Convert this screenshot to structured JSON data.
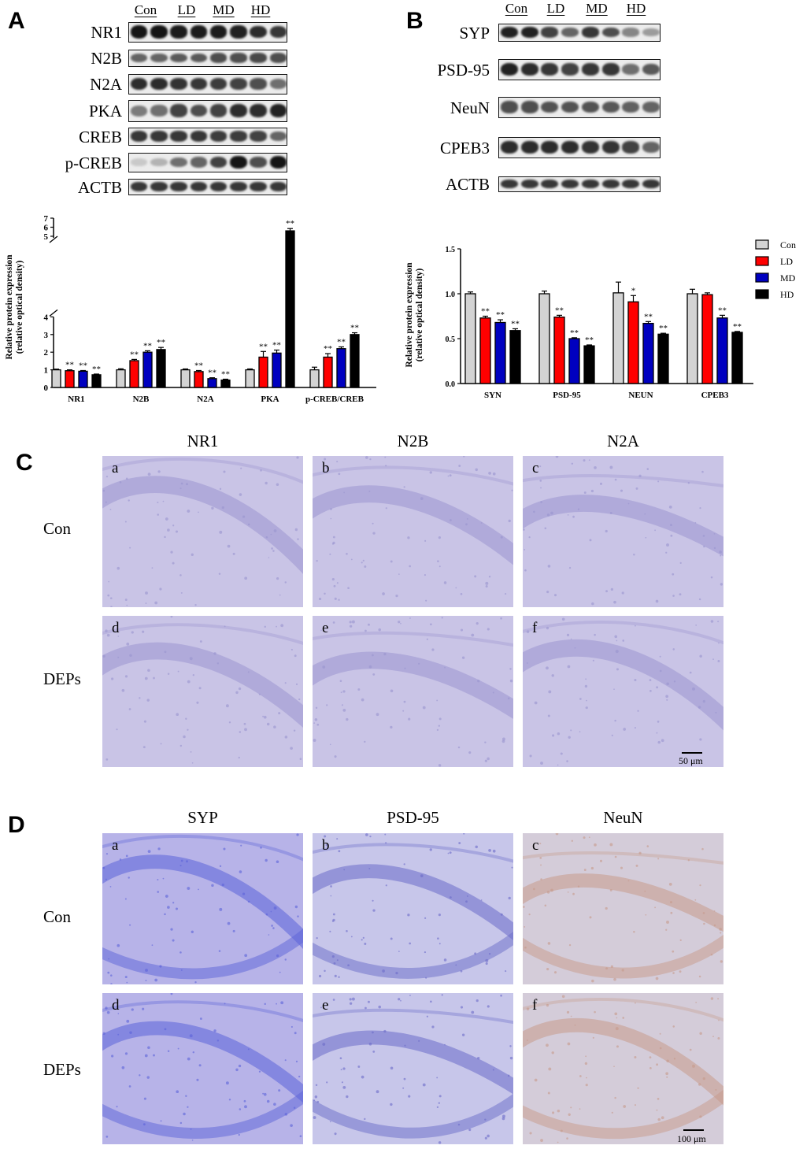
{
  "panels": {
    "a": {
      "letter": "A"
    },
    "b": {
      "letter": "B"
    },
    "c": {
      "letter": "C"
    },
    "d": {
      "letter": "D"
    }
  },
  "groups": [
    "Con",
    "LD",
    "MD",
    "HD"
  ],
  "blots_a": {
    "rows": [
      "NR1",
      "N2B",
      "N2A",
      "PKA",
      "CREB",
      "p-CREB",
      "ACTB"
    ],
    "intensity": [
      [
        0.95,
        0.95,
        0.92,
        0.92,
        0.92,
        0.9,
        0.85,
        0.8
      ],
      [
        0.6,
        0.6,
        0.65,
        0.65,
        0.7,
        0.7,
        0.72,
        0.7
      ],
      [
        0.85,
        0.85,
        0.82,
        0.8,
        0.78,
        0.75,
        0.7,
        0.55
      ],
      [
        0.5,
        0.55,
        0.75,
        0.7,
        0.75,
        0.85,
        0.85,
        0.9
      ],
      [
        0.8,
        0.8,
        0.8,
        0.8,
        0.78,
        0.78,
        0.75,
        0.6
      ],
      [
        0.15,
        0.25,
        0.55,
        0.6,
        0.75,
        0.95,
        0.7,
        0.95
      ],
      [
        0.8,
        0.8,
        0.8,
        0.8,
        0.8,
        0.8,
        0.8,
        0.8
      ]
    ]
  },
  "blots_b": {
    "rows": [
      "SYP",
      "PSD-95",
      "NeuN",
      "CPEB3",
      "ACTB"
    ],
    "intensity": [
      [
        0.9,
        0.9,
        0.75,
        0.6,
        0.8,
        0.7,
        0.45,
        0.35
      ],
      [
        0.9,
        0.85,
        0.8,
        0.75,
        0.8,
        0.8,
        0.55,
        0.65
      ],
      [
        0.7,
        0.7,
        0.68,
        0.68,
        0.68,
        0.66,
        0.62,
        0.6
      ],
      [
        0.85,
        0.85,
        0.85,
        0.85,
        0.82,
        0.82,
        0.75,
        0.6
      ],
      [
        0.8,
        0.8,
        0.8,
        0.8,
        0.8,
        0.8,
        0.8,
        0.8
      ]
    ]
  },
  "series_colors": {
    "Con": "#d3d3d3",
    "LD": "#ff0000",
    "MD": "#0000c0",
    "HD": "#000000"
  },
  "chart_data": [
    {
      "type": "bar",
      "ylabel": "Relative protein expression (relative optical density)",
      "ylabel_lines": [
        "Relative protein expression",
        "(relative optical density)"
      ],
      "ylim": [
        0,
        7
      ],
      "axis_break": [
        4,
        5
      ],
      "yticks_lower": [
        0,
        1,
        2,
        3,
        4
      ],
      "yticks_upper": [
        5,
        6,
        7
      ],
      "categories": [
        "NR1",
        "N2B",
        "N2A",
        "PKA",
        "p-CREB/CREB"
      ],
      "series": [
        {
          "name": "Con",
          "values": [
            1.0,
            1.0,
            1.0,
            1.0,
            1.0
          ],
          "errors": [
            0.04,
            0.06,
            0.05,
            0.05,
            0.15
          ],
          "sig": [
            "",
            "",
            "",
            "",
            ""
          ]
        },
        {
          "name": "LD",
          "values": [
            0.95,
            1.52,
            0.9,
            1.72,
            1.72
          ],
          "errors": [
            0.05,
            0.07,
            0.06,
            0.32,
            0.2
          ],
          "sig": [
            "**",
            "**",
            "**",
            "**",
            "**"
          ]
        },
        {
          "name": "MD",
          "values": [
            0.92,
            2.0,
            0.5,
            1.95,
            2.2
          ],
          "errors": [
            0.04,
            0.08,
            0.05,
            0.17,
            0.1
          ],
          "sig": [
            "**",
            "**",
            "**",
            "**",
            "**"
          ]
        },
        {
          "name": "HD",
          "values": [
            0.72,
            2.15,
            0.42,
            5.6,
            3.0
          ],
          "errors": [
            0.04,
            0.12,
            0.05,
            0.25,
            0.1
          ],
          "sig": [
            "**",
            "**",
            "**",
            "**",
            "**"
          ]
        }
      ]
    },
    {
      "type": "bar",
      "ylabel": "Relative protein expression (relative optical density)",
      "ylabel_lines": [
        "Relative protein expression",
        "(relative optical density)"
      ],
      "ylim": [
        0,
        1.5
      ],
      "yticks": [
        "0.0",
        "0.5",
        "1.0",
        "1.5"
      ],
      "categories": [
        "SYN",
        "PSD-95",
        "NEUN",
        "CPEB3"
      ],
      "legend": [
        "Con",
        "LD",
        "MD",
        "HD"
      ],
      "series": [
        {
          "name": "Con",
          "values": [
            1.0,
            1.0,
            1.01,
            1.0
          ],
          "errors": [
            0.02,
            0.03,
            0.12,
            0.05
          ],
          "sig": [
            "",
            "",
            "",
            ""
          ]
        },
        {
          "name": "LD",
          "values": [
            0.73,
            0.74,
            0.91,
            0.99
          ],
          "errors": [
            0.02,
            0.02,
            0.07,
            0.02
          ],
          "sig": [
            "**",
            "**",
            "*",
            ""
          ]
        },
        {
          "name": "MD",
          "values": [
            0.68,
            0.5,
            0.67,
            0.73
          ],
          "errors": [
            0.03,
            0.01,
            0.02,
            0.03
          ],
          "sig": [
            "**",
            "**",
            "**",
            "**"
          ]
        },
        {
          "name": "HD",
          "values": [
            0.59,
            0.42,
            0.55,
            0.57
          ],
          "errors": [
            0.02,
            0.01,
            0.01,
            0.01
          ],
          "sig": [
            "**",
            "**",
            "**",
            "**"
          ]
        }
      ]
    }
  ],
  "ihc_c": {
    "columns": [
      "NR1",
      "N2B",
      "N2A"
    ],
    "rows": [
      "Con",
      "DEPs"
    ],
    "letters": [
      "a",
      "b",
      "c",
      "d",
      "e",
      "f"
    ],
    "scale": "50 μm",
    "tissue_color": "#c9c4e6",
    "stain_color": "#9a95cf"
  },
  "ihc_d": {
    "columns": [
      "SYP",
      "PSD-95",
      "NeuN"
    ],
    "rows": [
      "Con",
      "DEPs"
    ],
    "letters": [
      "a",
      "b",
      "c",
      "d",
      "e",
      "f"
    ],
    "scale": "100 μm",
    "tissue_colors": [
      "#b7b3e8",
      "#c7c6ea",
      "#d4ccd9"
    ],
    "stain_colors": [
      "#5b63d8",
      "#6a6bc8",
      "#c79a8a"
    ]
  }
}
